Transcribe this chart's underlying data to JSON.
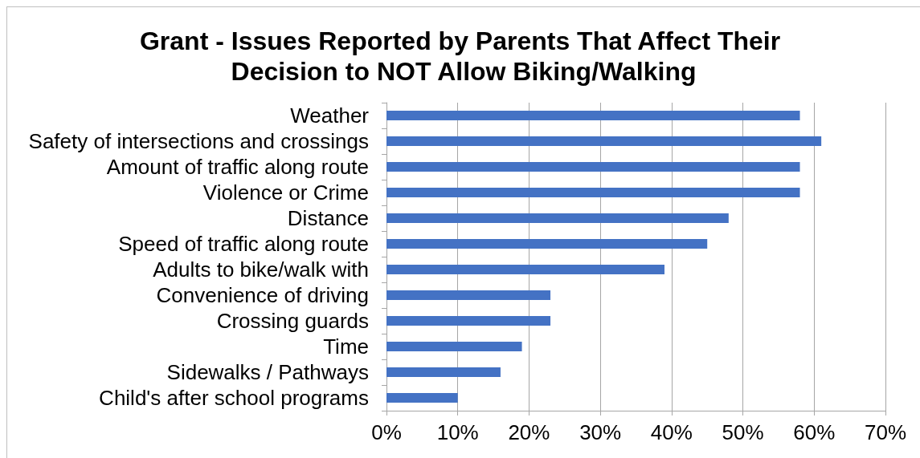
{
  "chart_data": {
    "type": "bar",
    "orientation": "horizontal",
    "title": "Grant - Issues Reported by Parents That Affect Their Decision to NOT Allow Biking/Walking",
    "categories": [
      "Weather",
      "Safety of intersections and crossings",
      "Amount of traffic along route",
      "Violence or Crime",
      "Distance",
      "Speed of traffic along route",
      "Adults to bike/walk with",
      "Convenience of driving",
      "Crossing guards",
      "Time",
      "Sidewalks / Pathways",
      "Child's after school programs"
    ],
    "values": [
      58,
      61,
      58,
      58,
      48,
      45,
      39,
      23,
      23,
      19,
      16,
      10
    ],
    "color": "#4472c4",
    "xlim": [
      0,
      70
    ],
    "xticks": [
      {
        "value": 0,
        "label": "0%"
      },
      {
        "value": 10,
        "label": "10%"
      },
      {
        "value": 20,
        "label": "20%"
      },
      {
        "value": 30,
        "label": "30%"
      },
      {
        "value": 40,
        "label": "40%"
      },
      {
        "value": 50,
        "label": "50%"
      },
      {
        "value": 60,
        "label": "60%"
      },
      {
        "value": 70,
        "label": "70%"
      }
    ],
    "grid": "x"
  }
}
